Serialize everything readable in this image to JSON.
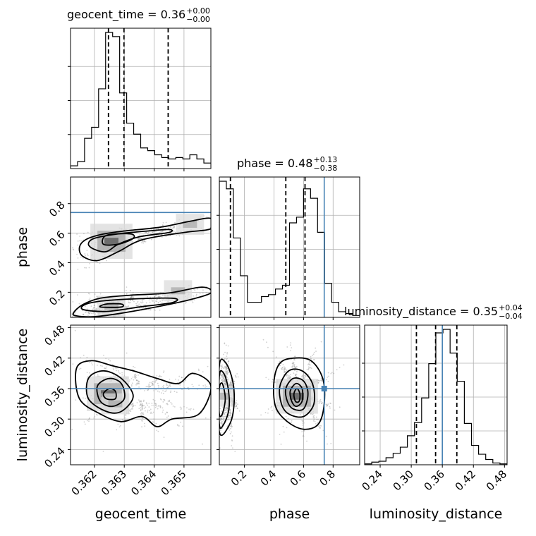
{
  "chart_data": {
    "type": "corner",
    "parameters": [
      {
        "key": "geocent_time",
        "label": "geocent_time",
        "title_main": "geocent_time = 0.36",
        "title_up": "+0.00",
        "title_down": "−0.00",
        "range": [
          0.3612,
          0.3659
        ],
        "ticks": [
          0.362,
          0.363,
          0.364,
          0.365
        ],
        "tick_labels": [
          "0.362",
          "0.363",
          "0.364",
          "0.365"
        ],
        "quantiles": [
          0.36247,
          0.36299,
          0.36447
        ],
        "truth": null,
        "hist_edges_start": 0.3612,
        "hist_bin_width": 0.000235,
        "hist_counts": [
          2,
          5,
          22,
          30,
          58,
          99,
          96,
          55,
          33,
          25,
          15,
          13,
          10,
          8,
          7,
          8,
          7,
          10,
          7,
          4
        ]
      },
      {
        "key": "phase",
        "label": "phase",
        "title_main": "phase = 0.48",
        "title_up": "+0.13",
        "title_down": "−0.38",
        "range": [
          0.03,
          0.98
        ],
        "ticks": [
          0.2,
          0.4,
          0.6,
          0.8
        ],
        "tick_labels": [
          "0.2",
          "0.4",
          "0.6",
          "0.8"
        ],
        "quantiles": [
          0.105,
          0.48,
          0.61
        ],
        "truth": 0.74,
        "hist_edges_start": 0.03,
        "hist_bin_width": 0.0475,
        "hist_counts": [
          72,
          68,
          42,
          22,
          8,
          8,
          11,
          12,
          15,
          17,
          50,
          53,
          68,
          63,
          45,
          18,
          8,
          3,
          2,
          1
        ]
      },
      {
        "key": "luminosity_distance",
        "label": "luminosity_distance",
        "title_main": "luminosity_distance = 0.35",
        "title_up": "+0.04",
        "title_down": "−0.04",
        "range": [
          0.21,
          0.485
        ],
        "ticks": [
          0.24,
          0.3,
          0.36,
          0.42,
          0.48
        ],
        "tick_labels": [
          "0.24",
          "0.30",
          "0.36",
          "0.42",
          "0.48"
        ],
        "quantiles": [
          0.31,
          0.347,
          0.388
        ],
        "truth": 0.36,
        "hist_edges_start": 0.21,
        "hist_bin_width": 0.01375,
        "hist_counts": [
          1,
          3,
          4,
          8,
          13,
          20,
          33,
          48,
          76,
          115,
          150,
          154,
          127,
          95,
          47,
          22,
          12,
          6,
          2,
          1
        ]
      }
    ],
    "panels_2d": [
      {
        "x": "geocent_time",
        "y": "phase",
        "density_peaks": [
          [
            0.36257,
            0.545
          ],
          [
            0.36257,
            0.105
          ],
          [
            0.3648,
            0.21
          ],
          [
            0.3652,
            0.66
          ]
        ],
        "contours": [
          [
            [
              0.3615,
              0.505
            ],
            [
              0.3617,
              0.555
            ],
            [
              0.3622,
              0.59
            ],
            [
              0.363,
              0.615
            ],
            [
              0.3642,
              0.64
            ],
            [
              0.3652,
              0.68
            ],
            [
              0.3659,
              0.7
            ],
            [
              0.3659,
              0.63
            ],
            [
              0.365,
              0.605
            ],
            [
              0.3636,
              0.555
            ],
            [
              0.3628,
              0.475
            ],
            [
              0.3621,
              0.415
            ],
            [
              0.3616,
              0.445
            ]
          ],
          [
            [
              0.3618,
              0.525
            ],
            [
              0.362,
              0.565
            ],
            [
              0.3628,
              0.595
            ],
            [
              0.3638,
              0.615
            ],
            [
              0.3645,
              0.625
            ],
            [
              0.3645,
              0.605
            ],
            [
              0.3635,
              0.575
            ],
            [
              0.3628,
              0.525
            ],
            [
              0.3624,
              0.475
            ],
            [
              0.362,
              0.49
            ]
          ],
          [
            [
              0.3623,
              0.525
            ],
            [
              0.3624,
              0.585
            ],
            [
              0.3632,
              0.595
            ],
            [
              0.3633,
              0.565
            ],
            [
              0.3628,
              0.525
            ]
          ],
          [
            [
              0.3613,
              0.06
            ],
            [
              0.3616,
              0.115
            ],
            [
              0.3622,
              0.16
            ],
            [
              0.3632,
              0.18
            ],
            [
              0.3645,
              0.195
            ],
            [
              0.3656,
              0.235
            ],
            [
              0.3659,
              0.195
            ],
            [
              0.365,
              0.14
            ],
            [
              0.3638,
              0.09
            ],
            [
              0.3628,
              0.055
            ],
            [
              0.362,
              0.035
            ],
            [
              0.3614,
              0.04
            ]
          ],
          [
            [
              0.3616,
              0.085
            ],
            [
              0.3618,
              0.125
            ],
            [
              0.3628,
              0.15
            ],
            [
              0.3646,
              0.16
            ],
            [
              0.3646,
              0.13
            ],
            [
              0.3635,
              0.1
            ],
            [
              0.3624,
              0.07
            ]
          ],
          [
            [
              0.3622,
              0.1
            ],
            [
              0.3624,
              0.12
            ],
            [
              0.3629,
              0.12
            ],
            [
              0.3629,
              0.1
            ]
          ]
        ]
      },
      {
        "x": "geocent_time",
        "y": "luminosity_distance",
        "density_peaks": [
          [
            0.36245,
            0.35
          ],
          [
            0.3627,
            0.33
          ]
        ],
        "contours": [
          [
            [
              0.3614,
              0.4
            ],
            [
              0.3619,
              0.415
            ],
            [
              0.3626,
              0.405
            ],
            [
              0.3633,
              0.395
            ],
            [
              0.3641,
              0.38
            ],
            [
              0.3648,
              0.37
            ],
            [
              0.3653,
              0.39
            ],
            [
              0.3659,
              0.365
            ],
            [
              0.3655,
              0.31
            ],
            [
              0.3646,
              0.3
            ],
            [
              0.3641,
              0.285
            ],
            [
              0.3636,
              0.305
            ],
            [
              0.3629,
              0.295
            ],
            [
              0.3622,
              0.31
            ],
            [
              0.3615,
              0.34
            ]
          ],
          [
            [
              0.3618,
              0.38
            ],
            [
              0.3623,
              0.395
            ],
            [
              0.3629,
              0.38
            ],
            [
              0.3633,
              0.345
            ],
            [
              0.3629,
              0.315
            ],
            [
              0.3624,
              0.315
            ],
            [
              0.3618,
              0.34
            ]
          ],
          [
            [
              0.3621,
              0.365
            ],
            [
              0.3625,
              0.38
            ],
            [
              0.3629,
              0.37
            ],
            [
              0.363,
              0.34
            ],
            [
              0.3626,
              0.325
            ],
            [
              0.3622,
              0.335
            ]
          ],
          [
            [
              0.3623,
              0.35
            ],
            [
              0.3625,
              0.36
            ],
            [
              0.3627,
              0.355
            ],
            [
              0.3627,
              0.34
            ],
            [
              0.3624,
              0.34
            ]
          ]
        ]
      },
      {
        "x": "phase",
        "y": "luminosity_distance",
        "density_peaks": [
          [
            0.555,
            0.345
          ],
          [
            0.04,
            0.345
          ]
        ],
        "contours": [
          [
            [
              0.03,
              0.405
            ],
            [
              0.075,
              0.41
            ],
            [
              0.12,
              0.375
            ],
            [
              0.13,
              0.33
            ],
            [
              0.1,
              0.29
            ],
            [
              0.03,
              0.275
            ]
          ],
          [
            [
              0.03,
              0.385
            ],
            [
              0.06,
              0.39
            ],
            [
              0.09,
              0.36
            ],
            [
              0.095,
              0.32
            ],
            [
              0.06,
              0.29
            ],
            [
              0.03,
              0.29
            ]
          ],
          [
            [
              0.03,
              0.36
            ],
            [
              0.05,
              0.37
            ],
            [
              0.07,
              0.34
            ],
            [
              0.05,
              0.31
            ],
            [
              0.03,
              0.31
            ]
          ],
          [
            [
              0.4,
              0.375
            ],
            [
              0.44,
              0.41
            ],
            [
              0.53,
              0.42
            ],
            [
              0.65,
              0.415
            ],
            [
              0.73,
              0.38
            ],
            [
              0.74,
              0.33
            ],
            [
              0.7,
              0.29
            ],
            [
              0.6,
              0.28
            ],
            [
              0.49,
              0.295
            ],
            [
              0.41,
              0.325
            ]
          ],
          [
            [
              0.44,
              0.365
            ],
            [
              0.5,
              0.395
            ],
            [
              0.59,
              0.395
            ],
            [
              0.66,
              0.37
            ],
            [
              0.67,
              0.33
            ],
            [
              0.6,
              0.305
            ],
            [
              0.5,
              0.31
            ],
            [
              0.45,
              0.33
            ]
          ],
          [
            [
              0.48,
              0.36
            ],
            [
              0.53,
              0.38
            ],
            [
              0.6,
              0.375
            ],
            [
              0.63,
              0.35
            ],
            [
              0.6,
              0.32
            ],
            [
              0.53,
              0.32
            ],
            [
              0.49,
              0.335
            ]
          ],
          [
            [
              0.51,
              0.355
            ],
            [
              0.55,
              0.37
            ],
            [
              0.59,
              0.36
            ],
            [
              0.59,
              0.335
            ],
            [
              0.55,
              0.325
            ],
            [
              0.52,
              0.335
            ]
          ],
          [
            [
              0.535,
              0.35
            ],
            [
              0.555,
              0.36
            ],
            [
              0.575,
              0.35
            ],
            [
              0.57,
              0.335
            ],
            [
              0.545,
              0.335
            ]
          ]
        ]
      }
    ],
    "hist_color": "#000000",
    "truth_color": "#4682b4",
    "grid": true
  }
}
